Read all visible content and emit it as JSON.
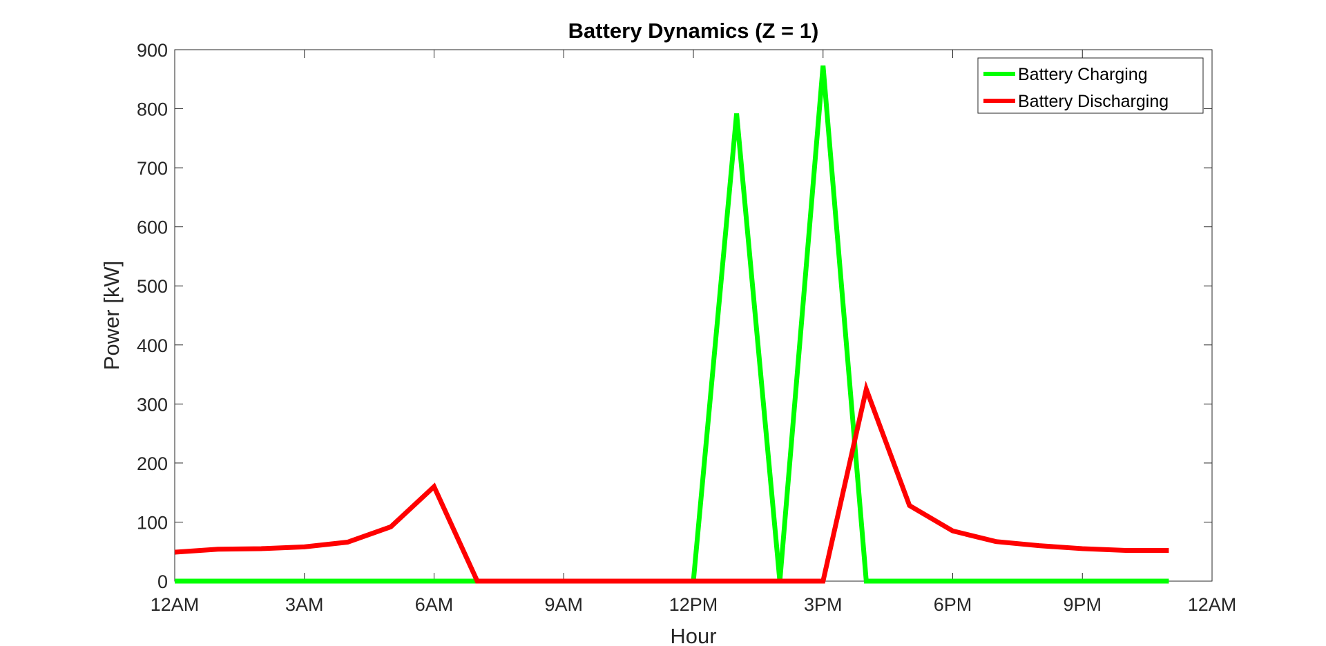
{
  "chart_data": {
    "type": "line",
    "title": "Battery Dynamics (Z = 1)",
    "xlabel": "Hour",
    "ylabel": "Power [kW]",
    "x_ticks": [
      0,
      3,
      6,
      9,
      12,
      15,
      18,
      21,
      24
    ],
    "x_tick_labels": [
      "12AM",
      "3AM",
      "6AM",
      "9AM",
      "12PM",
      "3PM",
      "6PM",
      "9PM",
      "12AM"
    ],
    "xlim": [
      0,
      24
    ],
    "ylim": [
      0,
      900
    ],
    "y_ticks": [
      0,
      100,
      200,
      300,
      400,
      500,
      600,
      700,
      800,
      900
    ],
    "y_tick_labels": [
      "0",
      "100",
      "200",
      "300",
      "400",
      "500",
      "600",
      "700",
      "800",
      "900"
    ],
    "x": [
      0,
      1,
      2,
      3,
      4,
      5,
      6,
      7,
      8,
      9,
      10,
      11,
      12,
      13,
      14,
      15,
      16,
      17,
      18,
      19,
      20,
      21,
      22,
      23
    ],
    "series": [
      {
        "name": "Battery Charging",
        "color": "#00ff00",
        "values": [
          0,
          0,
          0,
          0,
          0,
          0,
          0,
          0,
          0,
          0,
          0,
          0,
          0,
          792,
          0,
          873,
          0,
          0,
          0,
          0,
          0,
          0,
          0,
          0
        ]
      },
      {
        "name": "Battery Discharging",
        "color": "#ff0000",
        "values": [
          49,
          54,
          55,
          58,
          66,
          92,
          160,
          0,
          0,
          0,
          0,
          0,
          0,
          0,
          0,
          0,
          325,
          128,
          85,
          67,
          60,
          55,
          52,
          52
        ]
      }
    ],
    "legend_position": "top-right",
    "grid": false
  }
}
